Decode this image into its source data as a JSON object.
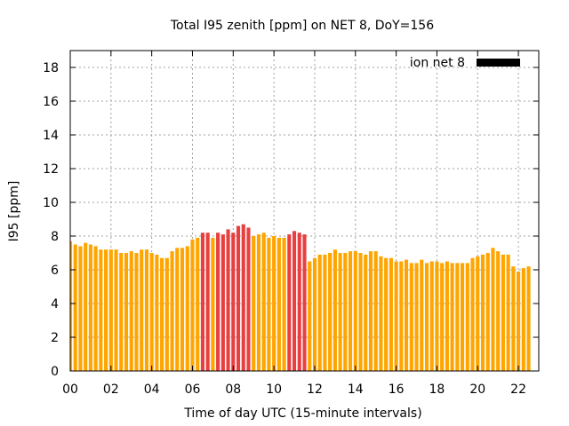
{
  "chart_data": {
    "type": "bar",
    "title": "Total I95 zenith [ppm] on NET 8, DoY=156",
    "xlabel": "Time of day UTC (15-minute intervals)",
    "ylabel": "I95 [ppm]",
    "xlim": [
      0,
      23
    ],
    "ylim": [
      0,
      19
    ],
    "x_ticks": [
      0,
      2,
      4,
      6,
      8,
      10,
      12,
      14,
      16,
      18,
      20,
      22
    ],
    "x_tick_labels": [
      "00",
      "02",
      "04",
      "06",
      "08",
      "10",
      "12",
      "14",
      "16",
      "18",
      "20",
      "22"
    ],
    "y_ticks": [
      0,
      2,
      4,
      6,
      8,
      10,
      12,
      14,
      16,
      18
    ],
    "y_tick_labels": [
      "0",
      "2",
      "4",
      "6",
      "8",
      "10",
      "12",
      "14",
      "16",
      "18"
    ],
    "grid": true,
    "legend": {
      "position": "top-right",
      "entries": [
        {
          "label": "ion net 8",
          "color": "#000000"
        }
      ]
    },
    "colors": {
      "normal": "#ffa500",
      "elevated": "#e84040"
    },
    "interval_hours": 0.25,
    "values": [
      7.7,
      7.5,
      7.4,
      7.6,
      7.5,
      7.4,
      7.2,
      7.2,
      7.2,
      7.2,
      7.0,
      7.0,
      7.1,
      7.0,
      7.2,
      7.2,
      7.0,
      6.9,
      6.7,
      6.7,
      7.1,
      7.3,
      7.3,
      7.4,
      7.8,
      7.9,
      8.2,
      8.2,
      7.9,
      8.2,
      8.1,
      8.4,
      8.2,
      8.6,
      8.7,
      8.5,
      8.0,
      8.1,
      8.2,
      7.9,
      8.0,
      7.9,
      7.9,
      8.1,
      8.3,
      8.2,
      8.1,
      6.5,
      6.7,
      6.9,
      6.9,
      7.0,
      7.2,
      7.0,
      7.0,
      7.1,
      7.1,
      7.0,
      6.9,
      7.1,
      7.1,
      6.8,
      6.7,
      6.7,
      6.5,
      6.5,
      6.6,
      6.4,
      6.4,
      6.6,
      6.4,
      6.5,
      6.5,
      6.4,
      6.5,
      6.4,
      6.4,
      6.4,
      6.4,
      6.7,
      6.8,
      6.9,
      7.0,
      7.3,
      7.1,
      6.9,
      6.9,
      6.2,
      5.9,
      6.1,
      6.2
    ],
    "elevated_indices": [
      26,
      27,
      29,
      30,
      31,
      32,
      33,
      34,
      35,
      43,
      44,
      45,
      46
    ]
  }
}
